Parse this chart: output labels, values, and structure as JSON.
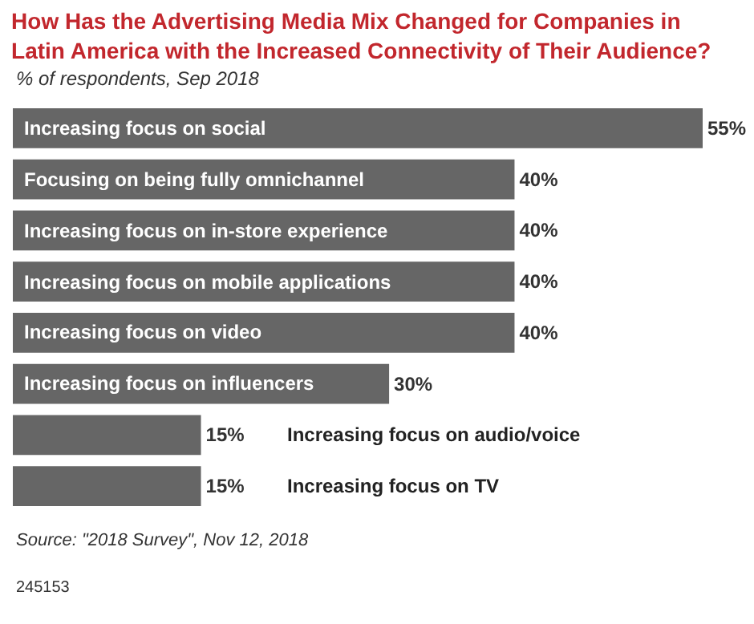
{
  "chart_data": {
    "type": "bar",
    "orientation": "horizontal",
    "title": "How Has the Advertising Media Mix Changed for Companies in Latin America with the Increased Connectivity of Their Audience?",
    "subtitle": "% of respondents, Sep 2018",
    "categories": [
      "Increasing focus on social",
      "Focusing on being fully omnichannel",
      "Increasing focus on in-store experience",
      "Increasing focus on mobile applications",
      "Increasing focus on video",
      "Increasing focus on influencers",
      "Increasing focus on audio/voice",
      "Increasing focus on TV"
    ],
    "values": [
      55,
      40,
      40,
      40,
      40,
      30,
      15,
      15
    ],
    "value_labels": [
      "55%",
      "40%",
      "40%",
      "40%",
      "40%",
      "30%",
      "15%",
      "15%"
    ],
    "color": "#666666",
    "annotations": [
      "Source: \"2018 Survey\", Nov 12, 2018",
      "245153"
    ]
  }
}
